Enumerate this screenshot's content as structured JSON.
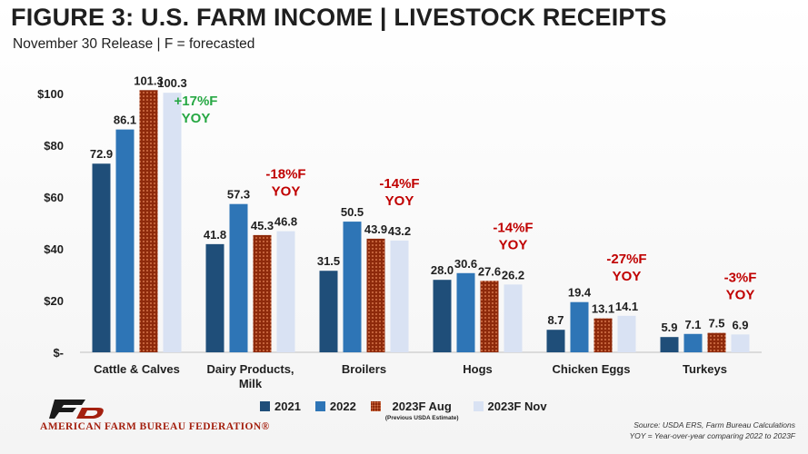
{
  "header": {
    "title": "FIGURE 3: U.S. FARM INCOME | LIVESTOCK RECEIPTS",
    "subtitle": "November 30 Release | F = forecasted"
  },
  "chart_data": {
    "type": "bar",
    "title": "FIGURE 3: U.S. FARM INCOME | LIVESTOCK RECEIPTS",
    "subtitle": "November 30 Release | F = forecasted",
    "xlabel": "",
    "ylabel": "",
    "ylim": [
      0,
      100
    ],
    "yticks": [
      0,
      20,
      40,
      60,
      80,
      100
    ],
    "ytick_labels": [
      "$-",
      "$20",
      "$40",
      "$60",
      "$80",
      "$100"
    ],
    "categories": [
      "Cattle & Calves",
      "Dairy Products, Milk",
      "Broilers",
      "Hogs",
      "Chicken Eggs",
      "Turkeys"
    ],
    "category_labels": [
      [
        "Cattle & Calves"
      ],
      [
        "Dairy Products,",
        "Milk"
      ],
      [
        "Broilers"
      ],
      [
        "Hogs"
      ],
      [
        "Chicken Eggs"
      ],
      [
        "Turkeys"
      ]
    ],
    "series": [
      {
        "name": "2021",
        "color": "#1f4e79",
        "values": [
          72.9,
          41.8,
          31.5,
          28.0,
          8.7,
          5.9
        ],
        "labels": [
          "72.9",
          "41.8",
          "31.5",
          "28.0",
          "8.7",
          "5.9"
        ]
      },
      {
        "name": "2022",
        "color": "#2e75b6",
        "values": [
          86.1,
          57.3,
          50.5,
          30.6,
          19.4,
          7.1
        ],
        "labels": [
          "86.1",
          "57.3",
          "50.5",
          "30.6",
          "19.4",
          "7.1"
        ]
      },
      {
        "name": "2023F Aug",
        "color": "#a0330f",
        "pattern": "dotted",
        "values": [
          101.3,
          45.3,
          43.9,
          27.6,
          13.1,
          7.5
        ],
        "labels": [
          "101.3",
          "45.3",
          "43.9",
          "27.6",
          "13.1",
          "7.5"
        ]
      },
      {
        "name": "2023F Nov",
        "color": "#d9e2f3",
        "values": [
          100.3,
          46.8,
          43.2,
          26.2,
          14.1,
          6.9
        ],
        "labels": [
          "100.3",
          "46.8",
          "43.2",
          "26.2",
          "14.1",
          "6.9"
        ]
      }
    ],
    "annotations": [
      {
        "category": "Cattle & Calves",
        "text": [
          "+17%F",
          "YOY"
        ],
        "color": "#27a844"
      },
      {
        "category": "Dairy Products, Milk",
        "text": [
          "-18%F",
          "YOY"
        ],
        "color": "#c00000"
      },
      {
        "category": "Broilers",
        "text": [
          "-14%F",
          "YOY"
        ],
        "color": "#c00000"
      },
      {
        "category": "Hogs",
        "text": [
          "-14%F",
          "YOY"
        ],
        "color": "#c00000"
      },
      {
        "category": "Chicken Eggs",
        "text": [
          "-27%F",
          "YOY"
        ],
        "color": "#c00000"
      },
      {
        "category": "Turkeys",
        "text": [
          "-3%F",
          "YOY"
        ],
        "color": "#c00000"
      }
    ],
    "grid": false,
    "legend_position": "bottom",
    "legend_note": "(Previous USDA Estimate)"
  },
  "logo": {
    "text": "AMERICAN FARM BUREAU FEDERATION®",
    "mark": "FB"
  },
  "source": {
    "line1": "Source: USDA ERS, Farm Bureau Calculations",
    "line2": "YOY = Year-over-year comparing 2022 to 2023F"
  },
  "colors": {
    "text": "#1f1f1f",
    "brand": "#a4200f",
    "axis": "#bfbfbf"
  }
}
